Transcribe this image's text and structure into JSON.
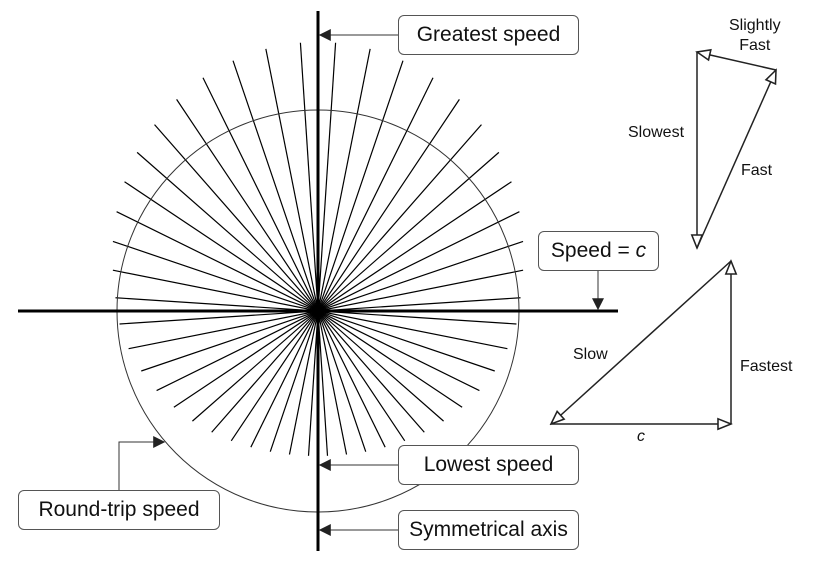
{
  "callouts": {
    "greatest_speed": "Greatest speed",
    "speed_equals": "Speed = ",
    "speed_symbol": "c",
    "lowest_speed": "Lowest speed",
    "round_trip_speed": "Round-trip speed",
    "symmetrical_axis": "Symmetrical axis"
  },
  "triangle_upper": {
    "slightly_fast_line1": "Slightly",
    "slightly_fast_line2": "Fast",
    "slowest": "Slowest",
    "fast": "Fast"
  },
  "triangle_lower": {
    "slow": "Slow",
    "fastest": "Fastest",
    "base": "c"
  },
  "colors": {
    "line": "#000000",
    "border": "#555555",
    "background": "#ffffff"
  }
}
